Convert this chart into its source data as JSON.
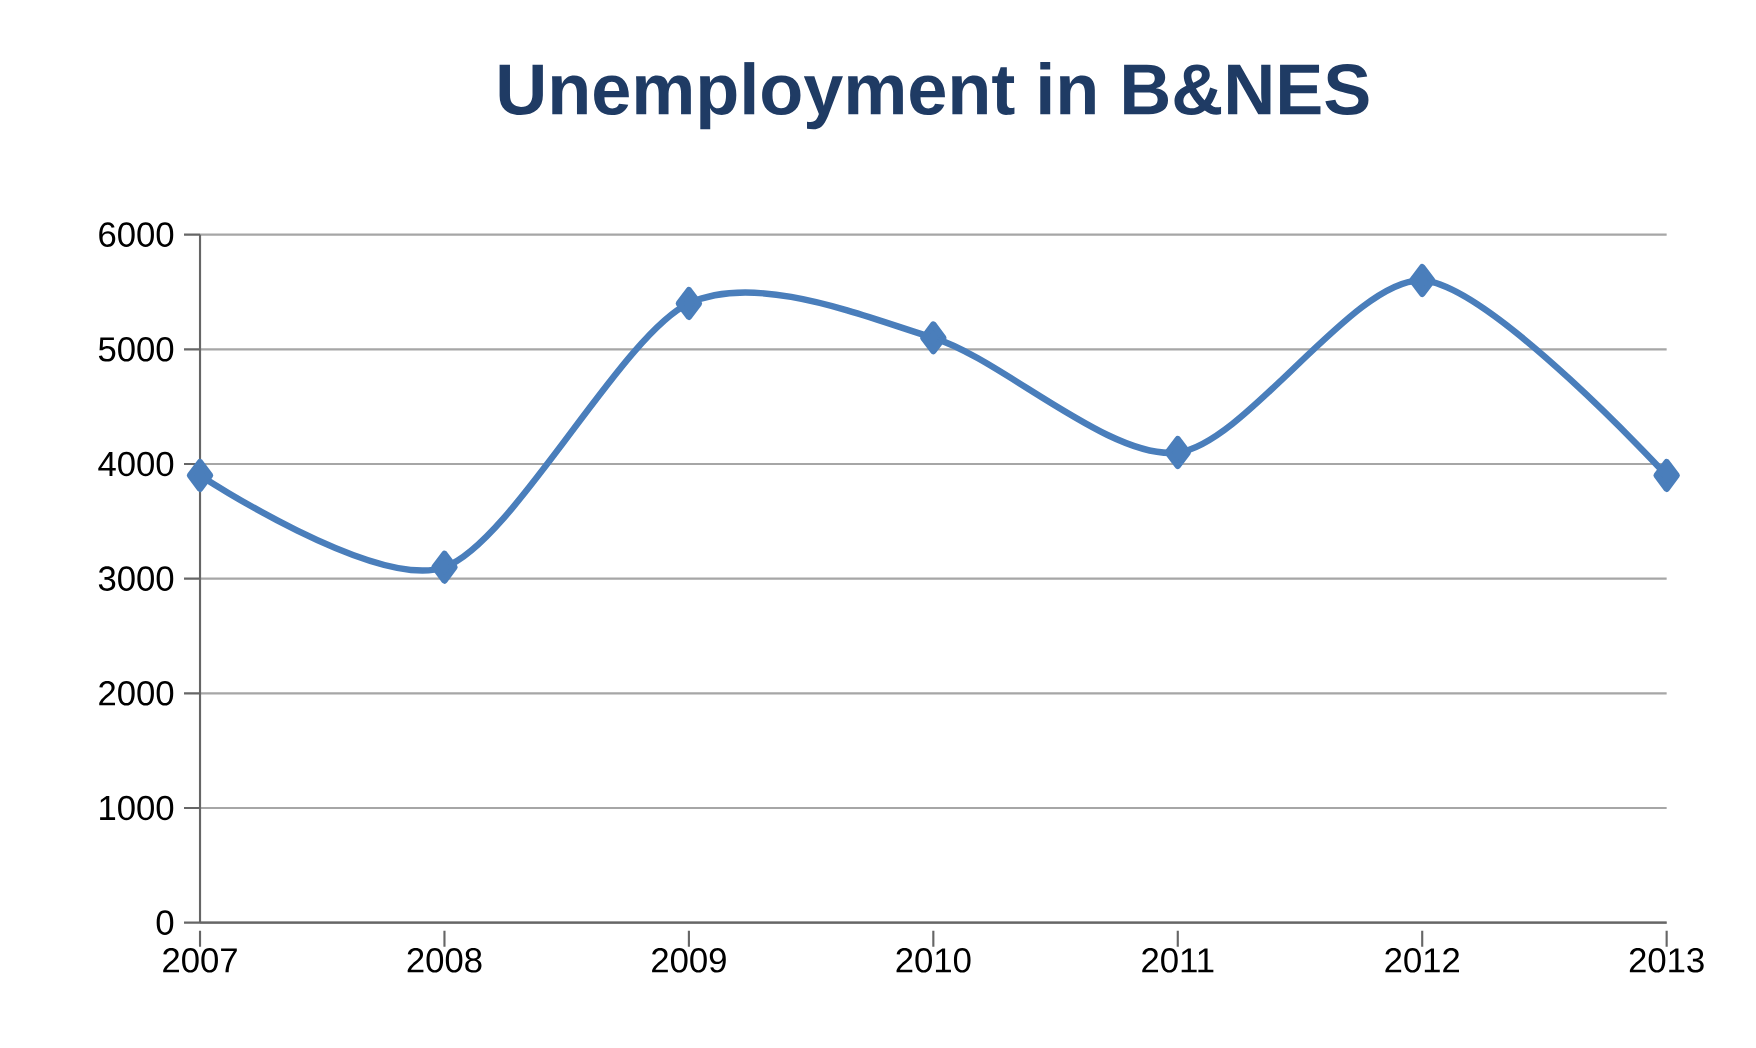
{
  "chart_data": {
    "type": "line",
    "title": "Unemployment in B&NES",
    "categories": [
      "2007",
      "2008",
      "2009",
      "2010",
      "2011",
      "2012",
      "2013"
    ],
    "values": [
      3900,
      3100,
      5400,
      5100,
      4100,
      5600,
      3900
    ],
    "color": "#4a7ebb",
    "ylim": [
      0,
      6000
    ],
    "yticks": [
      0,
      1000,
      2000,
      3000,
      4000,
      5000,
      6000
    ],
    "grid": "y",
    "marker": "diamond"
  }
}
